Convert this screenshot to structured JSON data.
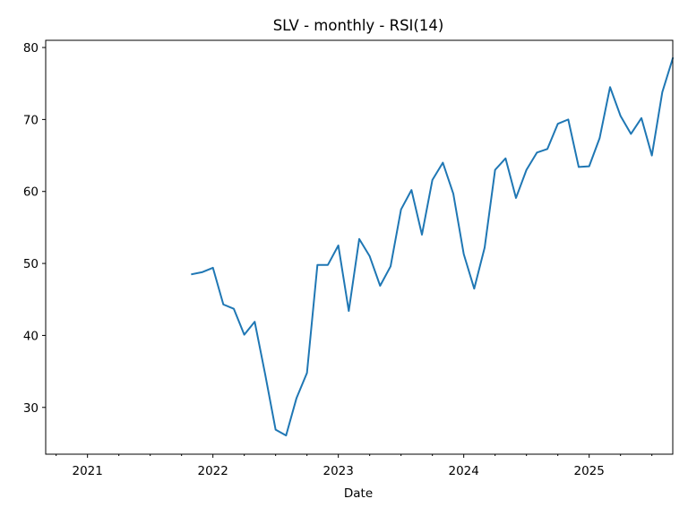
{
  "chart_data": {
    "type": "line",
    "title": "SLV - monthly - RSI(14)",
    "xlabel": "Date",
    "ylabel": "",
    "x_ticks": [
      "2021",
      "2022",
      "2023",
      "2024",
      "2025"
    ],
    "y_ticks": [
      30,
      40,
      50,
      60,
      70,
      80
    ],
    "xlim": [
      "2020-09-01",
      "2025-09-01"
    ],
    "ylim": [
      23.5,
      81
    ],
    "grid": false,
    "color": "#1f77b4",
    "series": [
      {
        "x": [
          "2021-11",
          "2021-12",
          "2022-01",
          "2022-02",
          "2022-03",
          "2022-04",
          "2022-05",
          "2022-06",
          "2022-07",
          "2022-08",
          "2022-09",
          "2022-10",
          "2022-11",
          "2022-12",
          "2023-01",
          "2023-02",
          "2023-03",
          "2023-04",
          "2023-05",
          "2023-06",
          "2023-07",
          "2023-08",
          "2023-09",
          "2023-10",
          "2023-11",
          "2023-12",
          "2024-01",
          "2024-02",
          "2024-03",
          "2024-04",
          "2024-05",
          "2024-06",
          "2024-07",
          "2024-08",
          "2024-09",
          "2024-10",
          "2024-11",
          "2024-12",
          "2025-01",
          "2025-02",
          "2025-03",
          "2025-04",
          "2025-05",
          "2025-06",
          "2025-07",
          "2025-08",
          "2025-09"
        ],
        "values": [
          48.5,
          48.8,
          49.4,
          44.3,
          43.7,
          40.1,
          41.9,
          34.6,
          26.9,
          26.1,
          31.3,
          34.8,
          49.8,
          49.8,
          52.5,
          43.4,
          53.4,
          51.0,
          46.9,
          49.6,
          57.5,
          60.2,
          54.0,
          61.6,
          64.0,
          59.7,
          51.3,
          46.5,
          52.2,
          63.0,
          64.6,
          59.1,
          63.0,
          65.4,
          65.9,
          69.4,
          70.0,
          63.4,
          63.5,
          67.4,
          74.5,
          70.5,
          68.0,
          70.2,
          65.0,
          73.8,
          78.5
        ]
      }
    ]
  }
}
